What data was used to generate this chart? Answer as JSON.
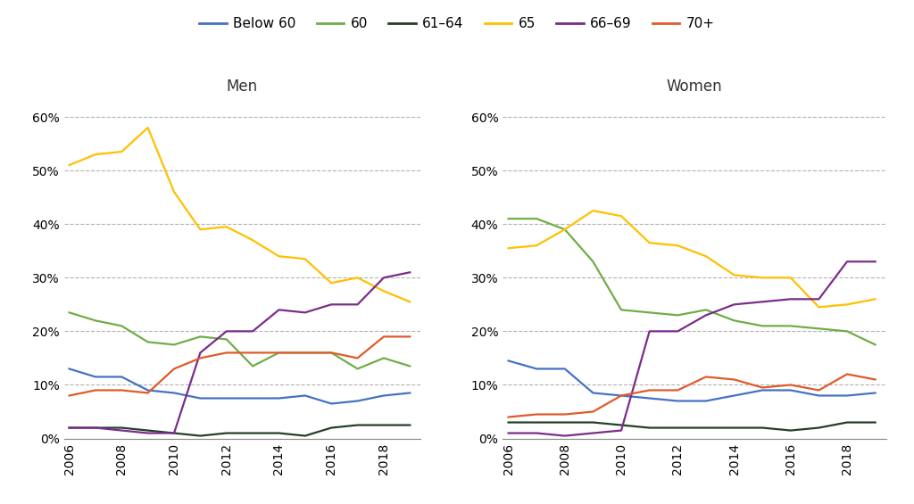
{
  "years": [
    2006,
    2007,
    2008,
    2009,
    2010,
    2011,
    2012,
    2013,
    2014,
    2015,
    2016,
    2017,
    2018,
    2019
  ],
  "men": {
    "Below 60": [
      13,
      11.5,
      11.5,
      9,
      8.5,
      7.5,
      7.5,
      7.5,
      7.5,
      8,
      6.5,
      7,
      8,
      8.5
    ],
    "60": [
      23.5,
      22,
      21,
      18,
      17.5,
      19,
      18.5,
      13.5,
      16,
      16,
      16,
      13,
      15,
      13.5
    ],
    "61-64": [
      2,
      2,
      2,
      1.5,
      1,
      0.5,
      1,
      1,
      1,
      0.5,
      2,
      2.5,
      2.5,
      2.5
    ],
    "65": [
      51,
      53,
      53.5,
      58,
      46,
      39,
      39.5,
      37,
      34,
      33.5,
      29,
      30,
      27.5,
      25.5
    ],
    "66-69": [
      2,
      2,
      1.5,
      1,
      1,
      16,
      20,
      20,
      24,
      23.5,
      25,
      25,
      30,
      31
    ],
    "70+": [
      8,
      9,
      9,
      8.5,
      13,
      15,
      16,
      16,
      16,
      16,
      16,
      15,
      19,
      19
    ]
  },
  "women": {
    "Below 60": [
      14.5,
      13,
      13,
      8.5,
      8,
      7.5,
      7,
      7,
      8,
      9,
      9,
      8,
      8,
      8.5
    ],
    "60": [
      41,
      41,
      39,
      33,
      24,
      23.5,
      23,
      24,
      22,
      21,
      21,
      20.5,
      20,
      17.5
    ],
    "61-64": [
      3,
      3,
      3,
      3,
      2.5,
      2,
      2,
      2,
      2,
      2,
      1.5,
      2,
      3,
      3
    ],
    "65": [
      35.5,
      36,
      39,
      42.5,
      41.5,
      36.5,
      36,
      34,
      30.5,
      30,
      30,
      24.5,
      25,
      26
    ],
    "66-69": [
      1,
      1,
      0.5,
      1,
      1.5,
      20,
      20,
      23,
      25,
      25.5,
      26,
      26,
      33,
      33
    ],
    "70+": [
      4,
      4.5,
      4.5,
      5,
      8,
      9,
      9,
      11.5,
      11,
      9.5,
      10,
      9,
      12,
      11
    ]
  },
  "colors": {
    "Below 60": "#4472c4",
    "60": "#70ad47",
    "61-64": "#243f29",
    "65": "#ffc000",
    "66-69": "#7b2c8b",
    "70+": "#e05a2b"
  },
  "legend_labels": [
    "Below 60",
    "60",
    "61–64",
    "65",
    "66–69",
    "70+"
  ],
  "legend_keys": [
    "Below 60",
    "60",
    "61-64",
    "65",
    "66-69",
    "70+"
  ],
  "ylim": [
    0,
    0.63
  ],
  "yticks": [
    0.0,
    0.1,
    0.2,
    0.3,
    0.4,
    0.5,
    0.6
  ],
  "background_color": "#ffffff"
}
